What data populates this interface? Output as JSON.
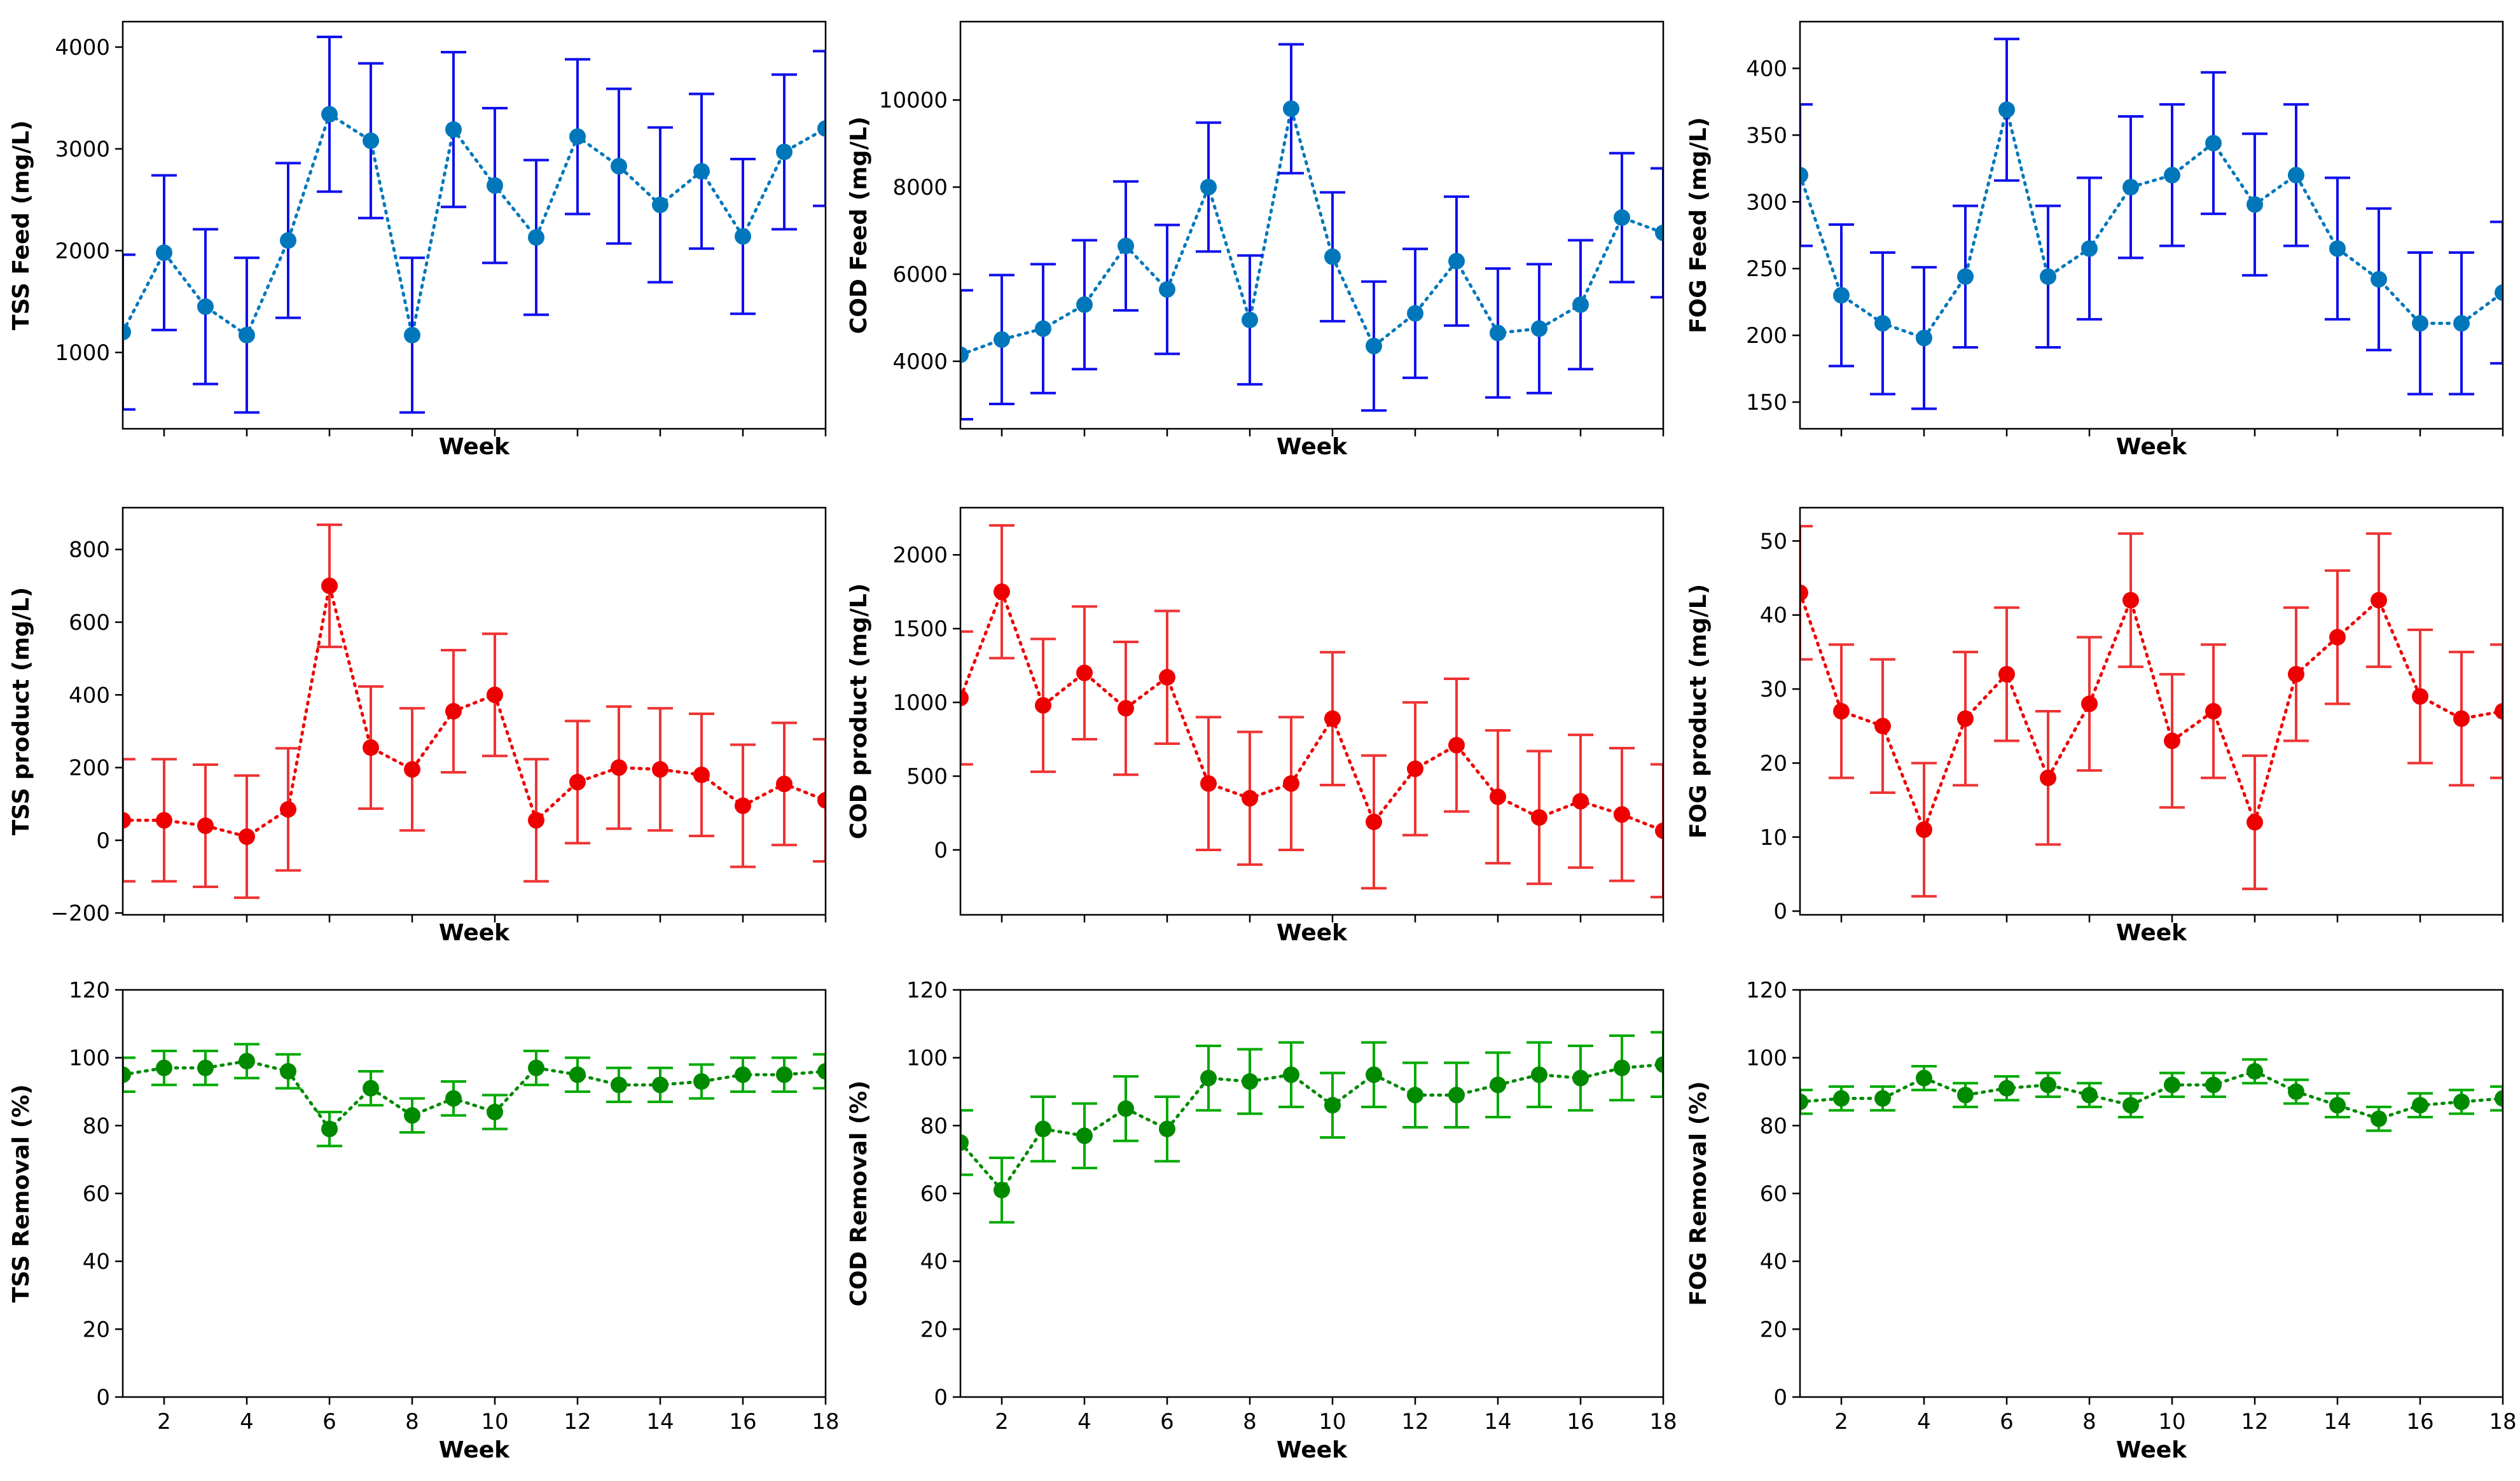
{
  "figure": {
    "description_free": true
  },
  "chart_data": [
    {
      "type": "line",
      "id": "tss-feed",
      "row": 0,
      "col": 0,
      "xlabel": "Week",
      "ylabel": "TSS Feed (mg/L)",
      "xlim": [
        1,
        18
      ],
      "ylim": [
        250,
        4250
      ],
      "yticks": [
        1000,
        2000,
        3000,
        4000
      ],
      "xticks": [
        2,
        4,
        6,
        8,
        10,
        12,
        14,
        16,
        18
      ],
      "show_xtick_labels": false,
      "color": "#0077bb",
      "errcolor": "#1010ee",
      "x": [
        1,
        2,
        3,
        4,
        5,
        6,
        7,
        8,
        9,
        10,
        11,
        12,
        13,
        14,
        15,
        16,
        17,
        18
      ],
      "values": [
        1200,
        1980,
        1450,
        1170,
        2100,
        3340,
        3080,
        1170,
        3190,
        2640,
        2130,
        3120,
        2830,
        2450,
        2780,
        2140,
        2970,
        3200
      ],
      "error": [
        760,
        760,
        760,
        760,
        760,
        760,
        760,
        760,
        760,
        760,
        760,
        760,
        760,
        760,
        760,
        760,
        760,
        760
      ]
    },
    {
      "type": "line",
      "id": "cod-feed",
      "row": 0,
      "col": 1,
      "xlabel": "Week",
      "ylabel": "COD Feed (mg/L)",
      "xlim": [
        1,
        18
      ],
      "ylim": [
        2450,
        11800
      ],
      "yticks": [
        4000,
        6000,
        8000,
        10000
      ],
      "xticks": [
        2,
        4,
        6,
        8,
        10,
        12,
        14,
        16,
        18
      ],
      "show_xtick_labels": false,
      "color": "#0077bb",
      "errcolor": "#1010ee",
      "x": [
        1,
        2,
        3,
        4,
        5,
        6,
        7,
        8,
        9,
        10,
        11,
        12,
        13,
        14,
        15,
        16,
        17,
        18
      ],
      "values": [
        4150,
        4500,
        4750,
        5300,
        6650,
        5650,
        8000,
        4950,
        9800,
        6400,
        4350,
        5100,
        6300,
        4650,
        4750,
        5300,
        7300,
        6950
      ],
      "error": [
        1480,
        1480,
        1480,
        1480,
        1480,
        1480,
        1480,
        1480,
        1480,
        1480,
        1480,
        1480,
        1480,
        1480,
        1480,
        1480,
        1480,
        1480
      ]
    },
    {
      "type": "line",
      "id": "fog-feed",
      "row": 0,
      "col": 2,
      "xlabel": "Week",
      "ylabel": "FOG Feed (mg/L)",
      "xlim": [
        1,
        18
      ],
      "ylim": [
        130,
        435
      ],
      "yticks": [
        150,
        200,
        250,
        300,
        350,
        400
      ],
      "xticks": [
        2,
        4,
        6,
        8,
        10,
        12,
        14,
        16,
        18
      ],
      "show_xtick_labels": false,
      "color": "#0077bb",
      "errcolor": "#1010ee",
      "x": [
        1,
        2,
        3,
        4,
        5,
        6,
        7,
        8,
        9,
        10,
        11,
        12,
        13,
        14,
        15,
        16,
        17,
        18
      ],
      "values": [
        320,
        230,
        209,
        198,
        244,
        369,
        244,
        265,
        311,
        320,
        344,
        298,
        320,
        265,
        242,
        209,
        209,
        232
      ],
      "error": [
        53,
        53,
        53,
        53,
        53,
        53,
        53,
        53,
        53,
        53,
        53,
        53,
        53,
        53,
        53,
        53,
        53,
        53
      ]
    },
    {
      "type": "line",
      "id": "tss-product",
      "row": 1,
      "col": 0,
      "xlabel": "Week",
      "ylabel": "TSS product (mg/L)",
      "xlim": [
        1,
        18
      ],
      "ylim": [
        -205,
        915
      ],
      "yticks": [
        -200,
        0,
        200,
        400,
        600,
        800
      ],
      "xticks": [
        2,
        4,
        6,
        8,
        10,
        12,
        14,
        16,
        18
      ],
      "show_xtick_labels": false,
      "color": "#ee0000",
      "errcolor": "#ee3333",
      "x": [
        1,
        2,
        3,
        4,
        5,
        6,
        7,
        8,
        9,
        10,
        11,
        12,
        13,
        14,
        15,
        16,
        17,
        18
      ],
      "values": [
        55,
        55,
        40,
        10,
        85,
        700,
        255,
        195,
        355,
        400,
        55,
        160,
        200,
        195,
        180,
        95,
        155,
        110
      ],
      "error": [
        168,
        168,
        168,
        168,
        168,
        168,
        168,
        168,
        168,
        168,
        168,
        168,
        168,
        168,
        168,
        168,
        168,
        168
      ]
    },
    {
      "type": "line",
      "id": "cod-product",
      "row": 1,
      "col": 1,
      "xlabel": "Week",
      "ylabel": "COD product (mg/L)",
      "xlim": [
        1,
        18
      ],
      "ylim": [
        -440,
        2320
      ],
      "yticks": [
        0,
        500,
        1000,
        1500,
        2000
      ],
      "xticks": [
        2,
        4,
        6,
        8,
        10,
        12,
        14,
        16,
        18
      ],
      "show_xtick_labels": false,
      "color": "#ee0000",
      "errcolor": "#ee3333",
      "x": [
        1,
        2,
        3,
        4,
        5,
        6,
        7,
        8,
        9,
        10,
        11,
        12,
        13,
        14,
        15,
        16,
        17,
        18
      ],
      "values": [
        1030,
        1750,
        980,
        1200,
        960,
        1170,
        450,
        350,
        450,
        890,
        190,
        550,
        710,
        360,
        220,
        330,
        240,
        130
      ],
      "error": [
        450,
        450,
        450,
        450,
        450,
        450,
        450,
        450,
        450,
        450,
        450,
        450,
        450,
        450,
        450,
        450,
        450,
        450
      ]
    },
    {
      "type": "line",
      "id": "fog-product",
      "row": 1,
      "col": 2,
      "xlabel": "Week",
      "ylabel": "FOG product (mg/L)",
      "xlim": [
        1,
        18
      ],
      "ylim": [
        -0.5,
        54.5
      ],
      "yticks": [
        0,
        10,
        20,
        30,
        40,
        50
      ],
      "xticks": [
        2,
        4,
        6,
        8,
        10,
        12,
        14,
        16,
        18
      ],
      "show_xtick_labels": false,
      "color": "#ee0000",
      "errcolor": "#ee3333",
      "x": [
        1,
        2,
        3,
        4,
        5,
        6,
        7,
        8,
        9,
        10,
        11,
        12,
        13,
        14,
        15,
        16,
        17,
        18
      ],
      "values": [
        43,
        27,
        25,
        11,
        26,
        32,
        18,
        28,
        42,
        23,
        27,
        12,
        32,
        37,
        42,
        29,
        26,
        27
      ],
      "error": [
        9,
        9,
        9,
        9,
        9,
        9,
        9,
        9,
        9,
        9,
        9,
        9,
        9,
        9,
        9,
        9,
        9,
        9
      ]
    },
    {
      "type": "line",
      "id": "tss-removal",
      "row": 2,
      "col": 0,
      "xlabel": "Week",
      "ylabel": "TSS Removal (%)",
      "xlim": [
        1,
        18
      ],
      "ylim": [
        0,
        120
      ],
      "yticks": [
        0,
        20,
        40,
        60,
        80,
        100,
        120
      ],
      "xticks": [
        2,
        4,
        6,
        8,
        10,
        12,
        14,
        16,
        18
      ],
      "show_xtick_labels": true,
      "color": "#008a00",
      "errcolor": "#00aa00",
      "x": [
        1,
        2,
        3,
        4,
        5,
        6,
        7,
        8,
        9,
        10,
        11,
        12,
        13,
        14,
        15,
        16,
        17,
        18
      ],
      "values": [
        95,
        97,
        97,
        99,
        96,
        79,
        91,
        83,
        88,
        84,
        97,
        95,
        92,
        92,
        93,
        95,
        95,
        96
      ],
      "error": [
        5,
        5,
        5,
        5,
        5,
        5,
        5,
        5,
        5,
        5,
        5,
        5,
        5,
        5,
        5,
        5,
        5,
        5
      ]
    },
    {
      "type": "line",
      "id": "cod-removal",
      "row": 2,
      "col": 1,
      "xlabel": "Week",
      "ylabel": "COD Removal (%)",
      "xlim": [
        1,
        18
      ],
      "ylim": [
        0,
        120
      ],
      "yticks": [
        0,
        20,
        40,
        60,
        80,
        100,
        120
      ],
      "xticks": [
        2,
        4,
        6,
        8,
        10,
        12,
        14,
        16,
        18
      ],
      "show_xtick_labels": true,
      "color": "#008a00",
      "errcolor": "#00aa00",
      "x": [
        1,
        2,
        3,
        4,
        5,
        6,
        7,
        8,
        9,
        10,
        11,
        12,
        13,
        14,
        15,
        16,
        17,
        18
      ],
      "values": [
        75,
        61,
        79,
        77,
        85,
        79,
        94,
        93,
        95,
        86,
        95,
        89,
        89,
        92,
        95,
        94,
        97,
        98
      ],
      "error": [
        9.5,
        9.5,
        9.5,
        9.5,
        9.5,
        9.5,
        9.5,
        9.5,
        9.5,
        9.5,
        9.5,
        9.5,
        9.5,
        9.5,
        9.5,
        9.5,
        9.5,
        9.5
      ]
    },
    {
      "type": "line",
      "id": "fog-removal",
      "row": 2,
      "col": 2,
      "xlabel": "Week",
      "ylabel": "FOG Removal (%)",
      "xlim": [
        1,
        18
      ],
      "ylim": [
        0,
        120
      ],
      "yticks": [
        0,
        20,
        40,
        60,
        80,
        100,
        120
      ],
      "xticks": [
        2,
        4,
        6,
        8,
        10,
        12,
        14,
        16,
        18
      ],
      "show_xtick_labels": true,
      "color": "#008a00",
      "errcolor": "#00aa00",
      "x": [
        1,
        2,
        3,
        4,
        5,
        6,
        7,
        8,
        9,
        10,
        11,
        12,
        13,
        14,
        15,
        16,
        17,
        18
      ],
      "values": [
        87,
        88,
        88,
        94,
        89,
        91,
        92,
        89,
        86,
        92,
        92,
        96,
        90,
        86,
        82,
        86,
        87,
        88
      ],
      "error": [
        3.5,
        3.5,
        3.5,
        3.5,
        3.5,
        3.5,
        3.5,
        3.5,
        3.5,
        3.5,
        3.5,
        3.5,
        3.5,
        3.5,
        3.5,
        3.5,
        3.5,
        3.5
      ]
    }
  ]
}
